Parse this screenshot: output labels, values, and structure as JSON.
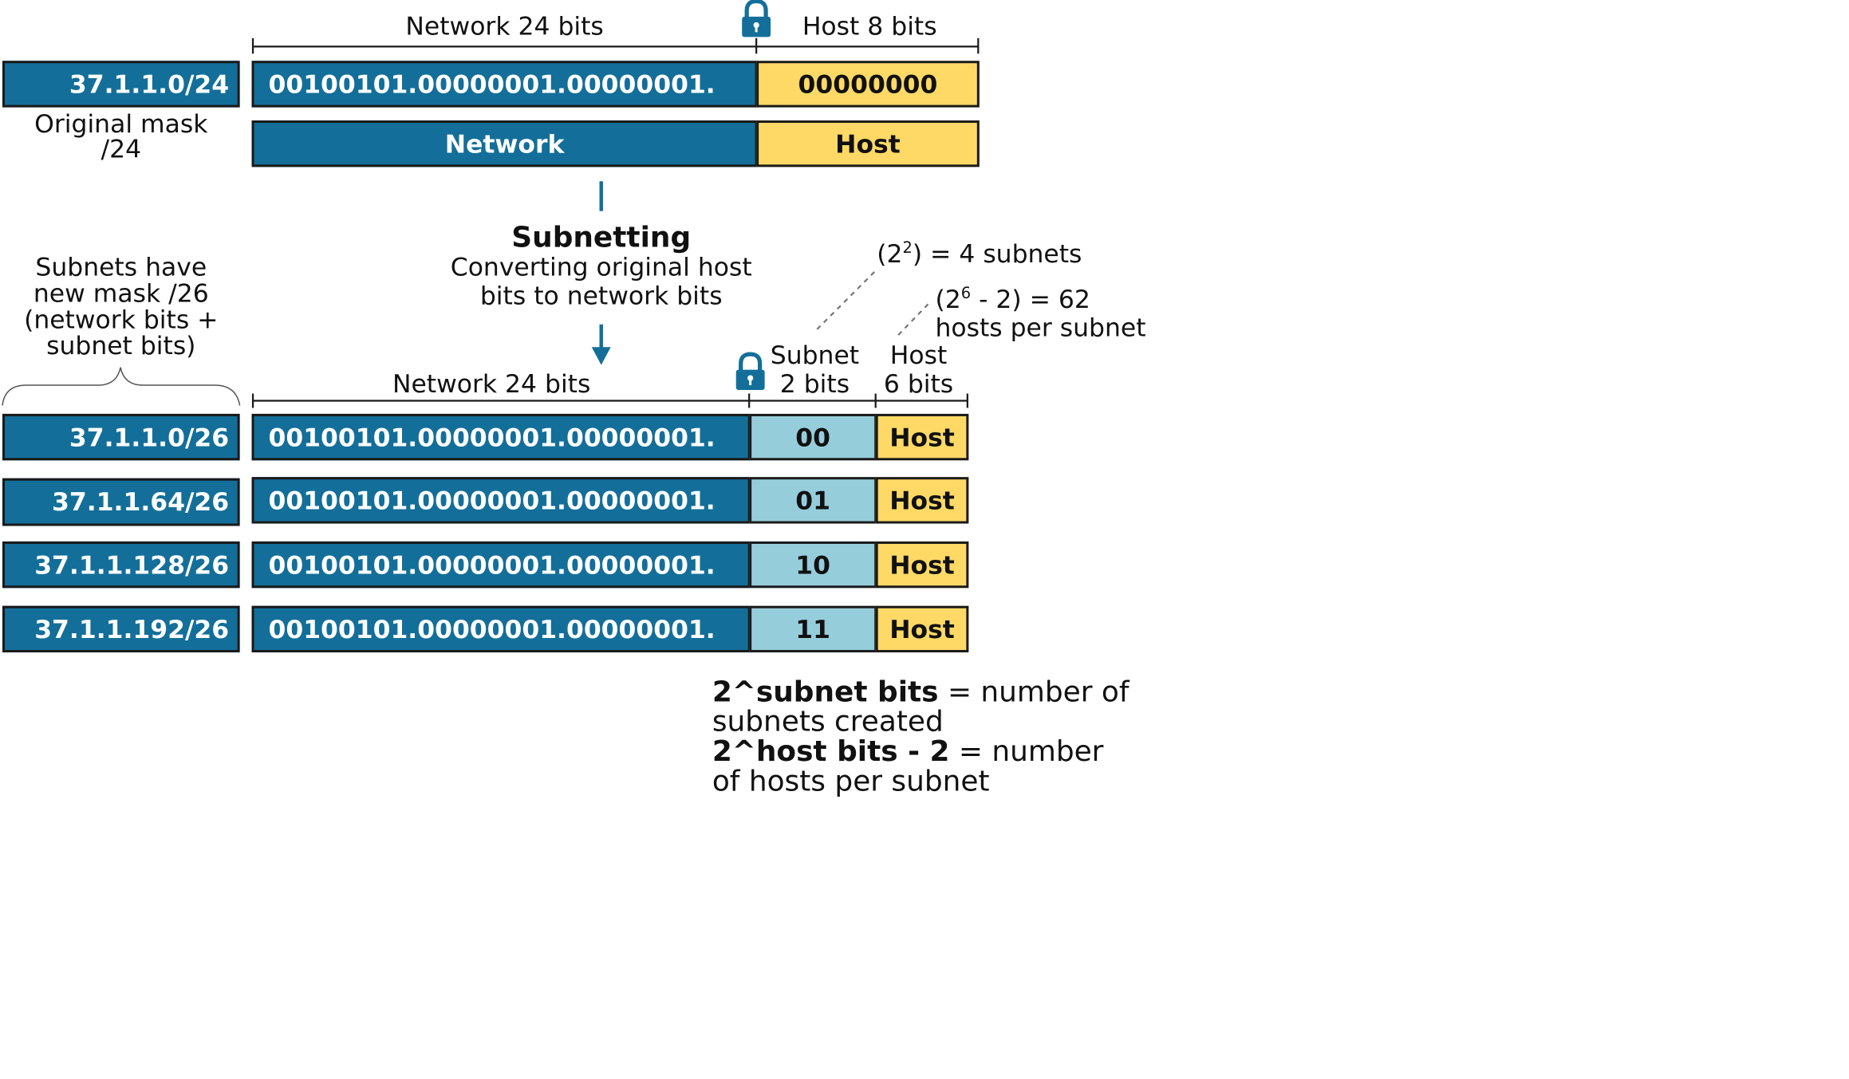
{
  "top": {
    "network_bits_label": "Network 24 bits",
    "host_bits_label": "Host 8 bits",
    "cidr": "37.1.1.0/24",
    "binary_network": "00100101.00000001.00000001.",
    "binary_host": "00000000",
    "network_label": "Network",
    "host_label": "Host",
    "mask_caption_line1": "Original mask",
    "mask_caption_line2": "/24"
  },
  "middle": {
    "title": "Subnetting",
    "subtitle_line1": "Converting original host",
    "subtitle_line2": "bits to network bits",
    "left_caption": [
      "Subnets have",
      "new mask /26",
      "(network bits +",
      "subnet bits)"
    ],
    "subnets_formula": {
      "base": "(2",
      "exp": "2",
      "rest": ") = 4 subnets"
    },
    "hosts_formula": {
      "base": "(2",
      "exp": "6",
      "rest": " - 2) = 62",
      "line2": "hosts per subnet"
    }
  },
  "bottom": {
    "network_bits_label": "Network 24 bits",
    "subnet_bits_line1": "Subnet",
    "subnet_bits_line2": "2 bits",
    "host_bits_line1": "Host",
    "host_bits_line2": "6 bits",
    "rows": [
      {
        "cidr": "37.1.1.0/26",
        "binary": "00100101.00000001.00000001.",
        "subnet": "00",
        "host": "Host"
      },
      {
        "cidr": "37.1.1.64/26",
        "binary": "00100101.00000001.00000001.",
        "subnet": "01",
        "host": "Host"
      },
      {
        "cidr": "37.1.1.128/26",
        "binary": "00100101.00000001.00000001.",
        "subnet": "10",
        "host": "Host"
      },
      {
        "cidr": "37.1.1.192/26",
        "binary": "00100101.00000001.00000001.",
        "subnet": "11",
        "host": "Host"
      }
    ]
  },
  "formulas": {
    "f1_bold": "2^subnet bits",
    "f1_rest": " = number of",
    "f1_line2": "subnets created",
    "f2_bold": "2^host bits - 2",
    "f2_rest": " = number",
    "f2_line2": "of hosts per subnet"
  },
  "colors": {
    "network_blue": "#136f99",
    "host_yellow": "#ffd966",
    "subnet_light_blue": "#96cddb"
  },
  "icons": [
    "lock-icon",
    "arrow-down-icon",
    "brace-icon"
  ]
}
